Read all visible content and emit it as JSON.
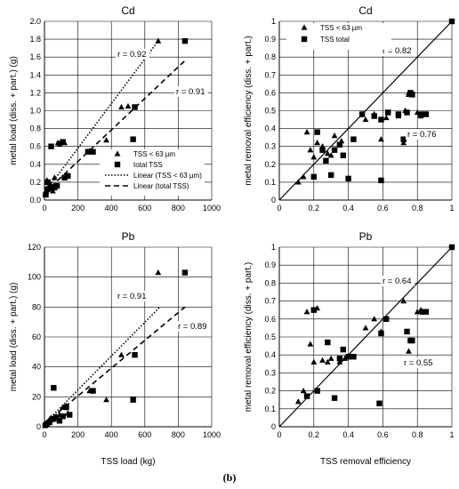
{
  "figure_label": "(b)",
  "chart_data": [
    {
      "type": "scatter",
      "title": "Cd",
      "xlabel": "",
      "ylabel": "metal load (diss. + part.) (g)",
      "xlim": [
        0,
        1000
      ],
      "ylim": [
        0,
        2.0
      ],
      "xticks": [
        "0",
        "200",
        "400",
        "600",
        "800",
        "1000"
      ],
      "yticks": [
        "0.0",
        "0.2",
        "0.4",
        "0.6",
        "0.8",
        "1.0",
        "1.2",
        "1.4",
        "1.6",
        "1.8",
        "2.0"
      ],
      "grid": true,
      "legend_position": "lower-right",
      "legend": [
        "TSS < 63 µm",
        "total TSS",
        "Linear (TSS < 63 µm)",
        "Linear (total TSS)"
      ],
      "annotations": [
        "r = 0.92",
        "r = 0.91"
      ],
      "series": [
        {
          "name": "TSS < 63 µm",
          "marker": "triangle",
          "x": [
            5,
            10,
            15,
            25,
            35,
            50,
            60,
            80,
            100,
            120,
            130,
            270,
            370,
            460,
            500,
            680
          ],
          "y": [
            0.07,
            0.1,
            0.22,
            0.12,
            0.18,
            0.1,
            0.25,
            0.64,
            0.65,
            0.64,
            0.28,
            0.55,
            0.67,
            1.04,
            1.05,
            1.78
          ]
        },
        {
          "name": "total TSS",
          "marker": "square",
          "x": [
            8,
            15,
            20,
            30,
            40,
            50,
            60,
            75,
            90,
            110,
            120,
            140,
            260,
            290,
            530,
            540,
            840
          ],
          "y": [
            0.06,
            0.12,
            0.2,
            0.13,
            0.6,
            0.14,
            0.14,
            0.16,
            0.63,
            0.65,
            0.25,
            0.27,
            0.54,
            0.54,
            0.68,
            1.04,
            1.78
          ]
        }
      ],
      "fits": [
        {
          "name": "Linear (TSS < 63 µm)",
          "style": "dotted",
          "x": [
            0,
            680
          ],
          "y": [
            0.08,
            1.78
          ]
        },
        {
          "name": "Linear (total TSS)",
          "style": "dashed",
          "x": [
            0,
            840
          ],
          "y": [
            0.08,
            1.56
          ]
        }
      ]
    },
    {
      "type": "scatter",
      "title": "Cd",
      "xlabel": "",
      "ylabel": "metal removal efficiency (diss. + part.)",
      "xlim": [
        0,
        1
      ],
      "ylim": [
        0,
        1
      ],
      "xticks": [
        "0",
        "0.2",
        "0.4",
        "0.6",
        "0.8",
        "1"
      ],
      "yticks": [
        "0",
        "0.1",
        "0.2",
        "0.3",
        "0.4",
        "0.5",
        "0.6",
        "0.7",
        "0.8",
        "0.9",
        "1"
      ],
      "grid": true,
      "legend_position": "top-left",
      "legend": [
        "TSS < 63 µm",
        "TSS total"
      ],
      "annotations": [
        "r = 0.82",
        "r = 0.76"
      ],
      "series": [
        {
          "name": "TSS < 63 µm",
          "marker": "triangle",
          "x": [
            0.11,
            0.14,
            0.16,
            0.18,
            0.2,
            0.22,
            0.25,
            0.28,
            0.3,
            0.32,
            0.36,
            0.5,
            0.55,
            0.59,
            0.62,
            0.69,
            0.72,
            0.73,
            0.75,
            0.75,
            0.8,
            0.82,
            0.85
          ],
          "y": [
            0.1,
            0.13,
            0.38,
            0.28,
            0.24,
            0.32,
            0.3,
            0.26,
            0.25,
            0.36,
            0.33,
            0.45,
            0.48,
            0.34,
            0.46,
            0.47,
            0.32,
            0.5,
            0.59,
            0.6,
            0.49,
            0.47,
            0.48
          ]
        },
        {
          "name": "TSS total",
          "marker": "square",
          "x": [
            0.2,
            0.22,
            0.25,
            0.27,
            0.3,
            0.32,
            0.35,
            0.37,
            0.4,
            0.43,
            0.48,
            0.55,
            0.59,
            0.59,
            0.63,
            0.69,
            0.72,
            0.74,
            0.76,
            0.77,
            0.82,
            0.85,
            1.0
          ],
          "y": [
            0.13,
            0.38,
            0.28,
            0.22,
            0.14,
            0.28,
            0.31,
            0.25,
            0.12,
            0.34,
            0.48,
            0.47,
            0.11,
            0.45,
            0.49,
            0.48,
            0.34,
            0.49,
            0.6,
            0.59,
            0.48,
            0.48,
            1.0
          ]
        }
      ],
      "fits": [
        {
          "name": "1:1",
          "style": "solid",
          "x": [
            0,
            1
          ],
          "y": [
            0,
            1
          ]
        }
      ]
    },
    {
      "type": "scatter",
      "title": "Pb",
      "xlabel": "TSS load (kg)",
      "ylabel": "metal load (diss. + part.) (g)",
      "xlim": [
        0,
        1000
      ],
      "ylim": [
        0,
        120
      ],
      "xticks": [
        "0",
        "200",
        "400",
        "600",
        "800",
        "1000"
      ],
      "yticks": [
        "0",
        "20",
        "40",
        "60",
        "80",
        "100",
        "120"
      ],
      "grid": true,
      "annotations": [
        "r = 0.91",
        "r = 0.89"
      ],
      "series": [
        {
          "name": "TSS < 63 µm",
          "marker": "triangle",
          "x": [
            5,
            15,
            25,
            40,
            55,
            70,
            90,
            110,
            130,
            140,
            270,
            370,
            460,
            680
          ],
          "y": [
            1,
            3,
            4,
            6,
            5,
            7,
            8,
            13,
            14,
            9,
            24,
            18,
            48,
            103
          ]
        },
        {
          "name": "total TSS",
          "marker": "square",
          "x": [
            5,
            15,
            30,
            45,
            55,
            70,
            90,
            110,
            130,
            150,
            290,
            530,
            540,
            840
          ],
          "y": [
            1,
            2,
            3,
            5,
            26,
            6,
            4,
            7,
            13,
            8,
            24,
            18,
            48,
            103
          ]
        }
      ],
      "fits": [
        {
          "name": "Linear (TSS < 63 µm)",
          "style": "dotted",
          "x": [
            0,
            690
          ],
          "y": [
            2,
            80
          ]
        },
        {
          "name": "Linear (total TSS)",
          "style": "dashed",
          "x": [
            0,
            840
          ],
          "y": [
            2,
            80
          ]
        }
      ]
    },
    {
      "type": "scatter",
      "title": "Pb",
      "xlabel": "TSS removal efficiency",
      "ylabel": "metal removal efficiency (diss. + part.)",
      "xlim": [
        0,
        1
      ],
      "ylim": [
        0,
        1
      ],
      "xticks": [
        "0",
        "0.2",
        "0.4",
        "0.6",
        "0.8",
        "1"
      ],
      "yticks": [
        "0",
        "0.1",
        "0.2",
        "0.3",
        "0.4",
        "0.5",
        "0.6",
        "0.7",
        "0.8",
        "0.9",
        "1"
      ],
      "grid": true,
      "annotations": [
        "r = 0.64",
        "r = 0.55"
      ],
      "series": [
        {
          "name": "TSS < 63 µm",
          "marker": "triangle",
          "x": [
            0.11,
            0.14,
            0.16,
            0.18,
            0.2,
            0.22,
            0.25,
            0.28,
            0.3,
            0.35,
            0.38,
            0.42,
            0.5,
            0.55,
            0.59,
            0.62,
            0.72,
            0.75,
            0.76,
            0.8,
            0.82
          ],
          "y": [
            0.14,
            0.2,
            0.64,
            0.46,
            0.36,
            0.66,
            0.37,
            0.36,
            0.38,
            0.36,
            0.38,
            0.39,
            0.55,
            0.6,
            0.53,
            0.6,
            0.7,
            0.42,
            0.48,
            0.64,
            0.65
          ]
        },
        {
          "name": "total TSS",
          "marker": "square",
          "x": [
            0.16,
            0.2,
            0.22,
            0.28,
            0.32,
            0.35,
            0.37,
            0.4,
            0.43,
            0.58,
            0.59,
            0.62,
            0.74,
            0.76,
            0.77,
            0.83,
            0.85,
            1.0
          ],
          "y": [
            0.17,
            0.65,
            0.2,
            0.47,
            0.16,
            0.38,
            0.43,
            0.39,
            0.39,
            0.13,
            0.52,
            0.6,
            0.53,
            0.48,
            0.48,
            0.64,
            0.64,
            1.0
          ]
        }
      ],
      "fits": [
        {
          "name": "1:1",
          "style": "solid",
          "x": [
            0,
            1
          ],
          "y": [
            0,
            1
          ]
        }
      ]
    }
  ]
}
